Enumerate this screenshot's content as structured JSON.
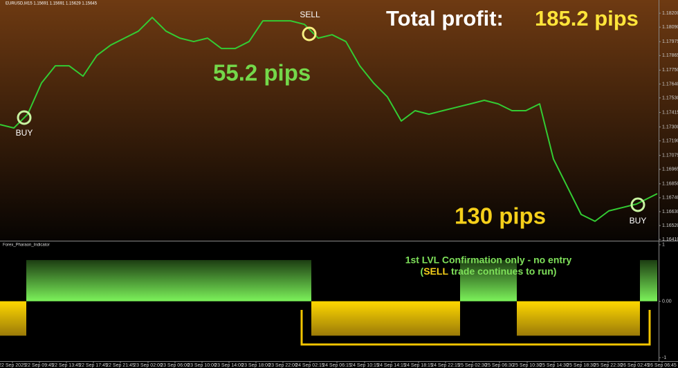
{
  "chart_data": [
    {
      "type": "line",
      "title": "EURUSD,M15 1.15691 1.15691 1.15629 1.15645",
      "color": "#33cc33",
      "x": [
        0,
        1,
        2,
        3,
        4,
        5,
        6,
        7,
        8,
        9,
        10,
        11,
        12,
        13,
        14,
        15,
        16,
        17,
        18,
        19,
        20,
        21,
        22,
        23,
        24,
        25,
        26,
        27,
        28,
        29,
        30,
        31,
        32,
        33,
        34,
        35,
        36,
        37,
        38,
        39,
        40,
        41,
        42,
        43,
        44,
        45,
        46,
        47,
        47.5
      ],
      "values": [
        1.17319,
        1.17292,
        1.17401,
        1.17648,
        1.17784,
        1.17784,
        1.17702,
        1.17866,
        1.17948,
        1.18003,
        1.18058,
        1.18167,
        1.18058,
        1.18003,
        1.17976,
        1.18003,
        1.17921,
        1.17921,
        1.17976,
        1.1814,
        1.1814,
        1.1814,
        1.18112,
        1.18003,
        1.1803,
        1.17976,
        1.17784,
        1.17648,
        1.17538,
        1.17347,
        1.17429,
        1.17401,
        1.17429,
        1.17456,
        1.17483,
        1.17511,
        1.17483,
        1.17429,
        1.17429,
        1.17483,
        1.17046,
        1.16827,
        1.16608,
        1.16554,
        1.16636,
        1.16663,
        1.1669,
        1.16745,
        1.16772
      ],
      "xlim": [
        0,
        47.6
      ],
      "ylim": [
        1.164,
        1.1825
      ],
      "yticks": [
        {
          "value": 1.182,
          "label": "1.18200"
        },
        {
          "value": 1.1809,
          "label": "1.18090"
        },
        {
          "value": 1.17975,
          "label": "1.17975"
        },
        {
          "value": 1.17865,
          "label": "1.17865"
        },
        {
          "value": 1.1775,
          "label": "1.17750"
        },
        {
          "value": 1.1764,
          "label": "1.17640"
        },
        {
          "value": 1.1753,
          "label": "1.17530"
        },
        {
          "value": 1.17415,
          "label": "1.17415"
        },
        {
          "value": 1.173,
          "label": "1.17300"
        },
        {
          "value": 1.1719,
          "label": "1.17190"
        },
        {
          "value": 1.17075,
          "label": "1.17075"
        },
        {
          "value": 1.16965,
          "label": "1.16965"
        },
        {
          "value": 1.1685,
          "label": "1.16850"
        },
        {
          "value": 1.1674,
          "label": "1.16740"
        },
        {
          "value": 1.1663,
          "label": "1.16630"
        },
        {
          "value": 1.1652,
          "label": "1.16520"
        },
        {
          "value": 1.1641,
          "label": "1.16410"
        }
      ],
      "xticks": [
        {
          "value": 0.9,
          "label": "22 Sep 2025"
        },
        {
          "value": 2.85,
          "label": "22 Sep 09:45"
        },
        {
          "value": 4.8,
          "label": "22 Sep 13:45"
        },
        {
          "value": 6.75,
          "label": "22 Sep 17:45"
        },
        {
          "value": 8.7,
          "label": "22 Sep 21:45"
        },
        {
          "value": 10.7,
          "label": "23 Sep 02:00"
        },
        {
          "value": 12.65,
          "label": "23 Sep 06:00"
        },
        {
          "value": 14.6,
          "label": "23 Sep 10:00"
        },
        {
          "value": 16.55,
          "label": "23 Sep 14:00"
        },
        {
          "value": 18.5,
          "label": "23 Sep 18:00"
        },
        {
          "value": 20.45,
          "label": "23 Sep 22:00"
        },
        {
          "value": 22.4,
          "label": "24 Sep 02:15"
        },
        {
          "value": 24.35,
          "label": "24 Sep 06:15"
        },
        {
          "value": 26.35,
          "label": "24 Sep 10:15"
        },
        {
          "value": 28.3,
          "label": "24 Sep 14:15"
        },
        {
          "value": 30.25,
          "label": "24 Sep 18:15"
        },
        {
          "value": 32.2,
          "label": "24 Sep 22:15"
        },
        {
          "value": 34.15,
          "label": "25 Sep 02:30"
        },
        {
          "value": 36.1,
          "label": "25 Sep 06:30"
        },
        {
          "value": 38.1,
          "label": "25 Sep 10:30"
        },
        {
          "value": 40.05,
          "label": "25 Sep 14:30"
        },
        {
          "value": 42,
          "label": "25 Sep 18:30"
        },
        {
          "value": 43.95,
          "label": "25 Sep 22:30"
        },
        {
          "value": 45.9,
          "label": "26 Sep 02:45"
        },
        {
          "value": 47.85,
          "label": "26 Sep 06:45"
        }
      ],
      "annotations": [
        "Total profit:",
        "185.2 pips",
        "55.2 pips",
        "130 pips",
        "BUY",
        "SELL",
        "BUY"
      ]
    },
    {
      "type": "segments",
      "title": "Forex_Pharaon_Indicator",
      "x_start": [
        0,
        1.9,
        22.5,
        33.25,
        37.35,
        46.25
      ],
      "x_end": [
        1.9,
        22.5,
        33.25,
        37.35,
        46.25,
        47.5
      ],
      "values": [
        -0.61,
        0.73,
        -0.61,
        0.73,
        -0.61,
        0.73
      ],
      "colors": [
        "yellow",
        "green",
        "yellow",
        "green",
        "yellow",
        "green"
      ],
      "xlim": [
        0,
        47.6
      ],
      "ylim": [
        -1.06,
        1.06
      ],
      "yticks": [
        1,
        {
          "value": 0,
          "label": "0.00"
        },
        -1
      ],
      "annotations": [
        "1st LVL Confirmation only - no entry",
        "(",
        "SELL",
        "trade continues to run)"
      ]
    }
  ]
}
